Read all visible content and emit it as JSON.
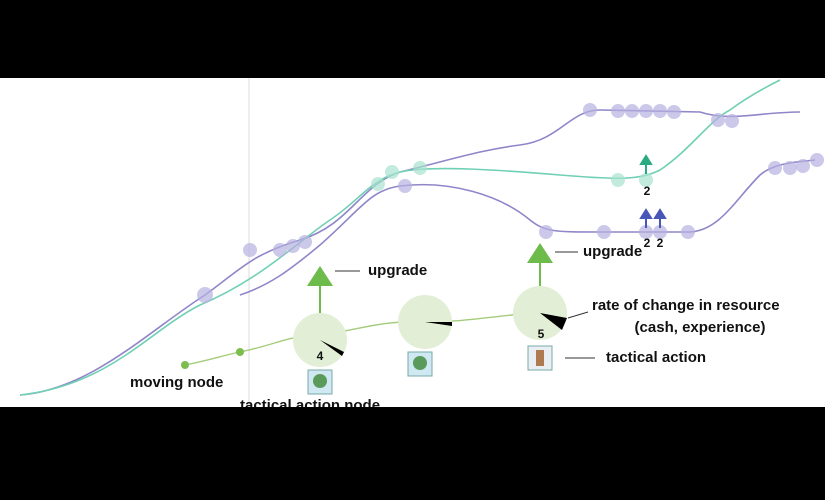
{
  "annotations": {
    "upgrade_left": "upgrade",
    "upgrade_right": "upgrade",
    "rate_of_change": "rate of change in resource",
    "rate_of_change_detail": "(cash, experience)",
    "tactical_action": "tactical action",
    "moving_node": "moving node",
    "tactical_action_node": "tactical action node"
  },
  "node_counts": [
    4,
    5
  ],
  "upgrade_counts": [
    2,
    2,
    2
  ]
}
